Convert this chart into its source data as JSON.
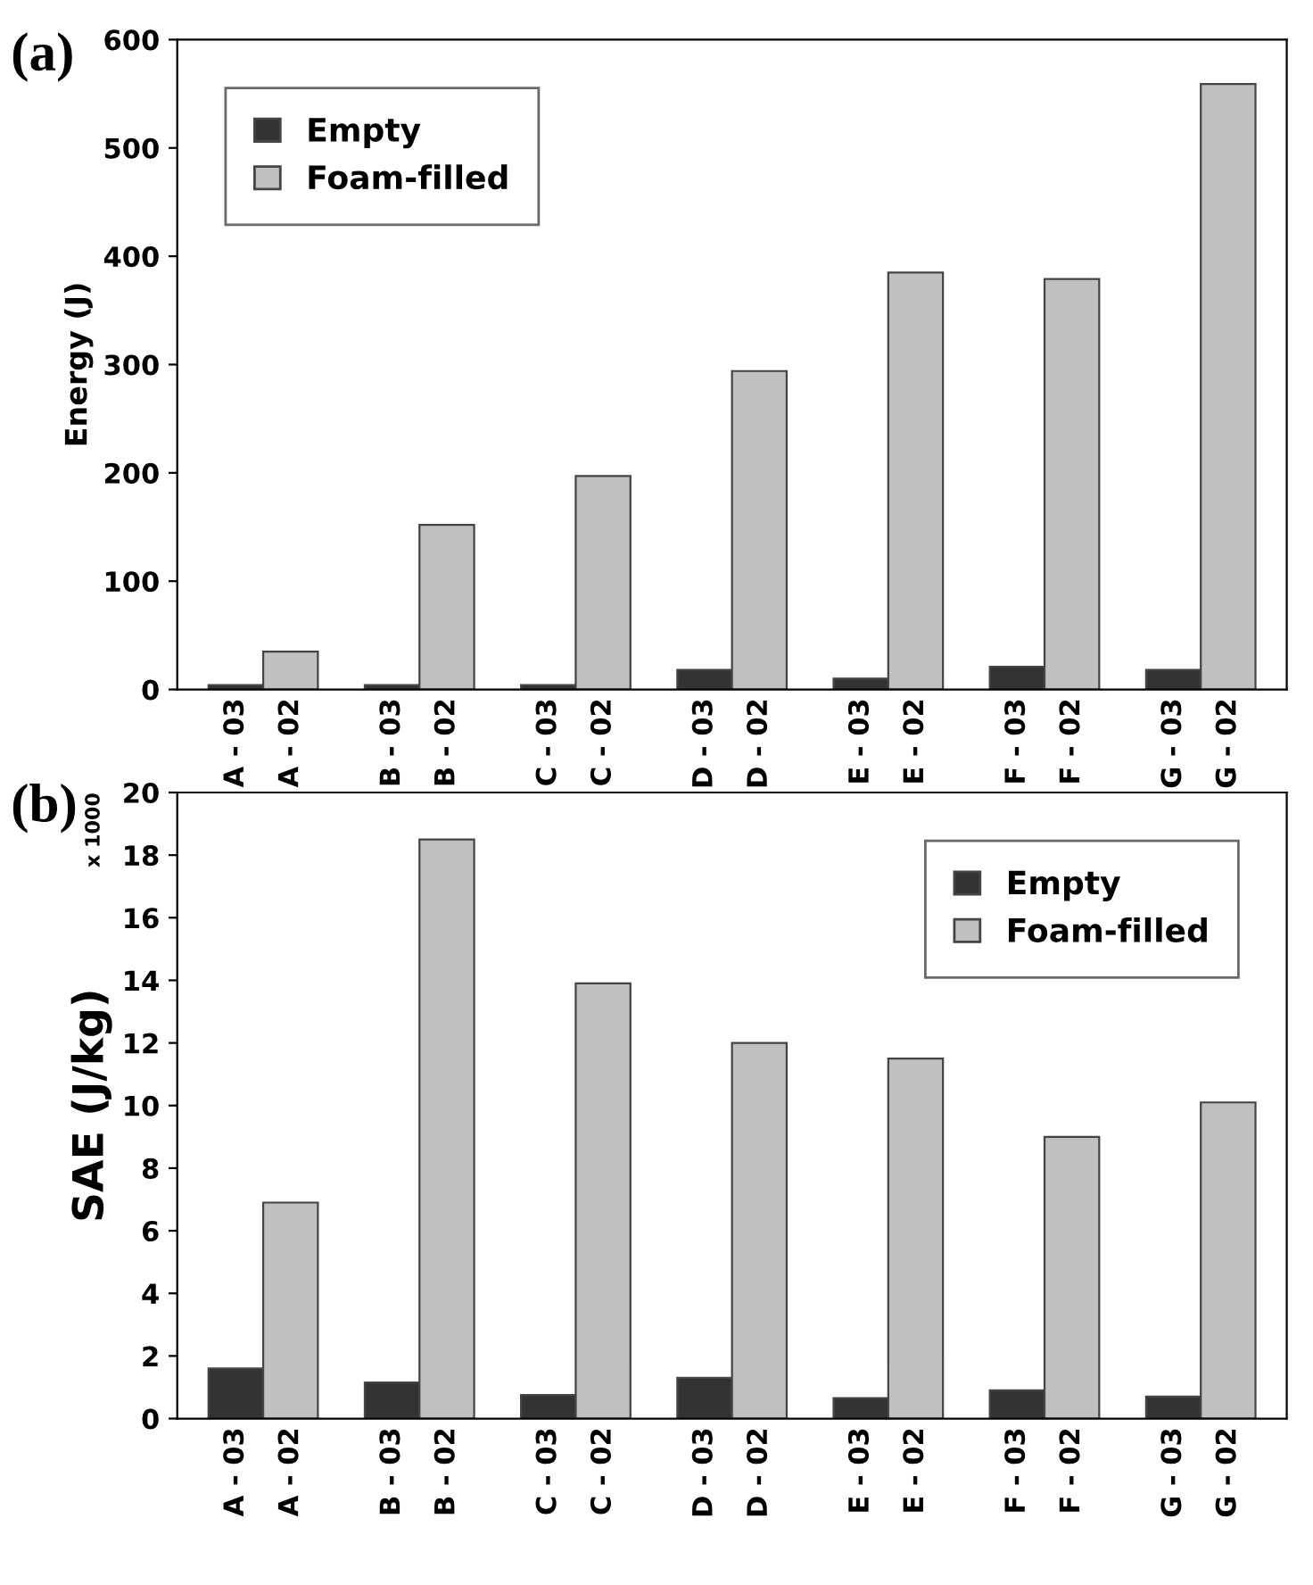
{
  "chart_data": [
    {
      "type": "bar",
      "title": "(a)",
      "ylabel": "Energy (J)",
      "categories": [
        "A - 03",
        "A - 02",
        "B - 03",
        "B - 02",
        "C - 03",
        "C - 02",
        "D - 03",
        "D - 02",
        "E - 03",
        "E - 02",
        "F - 03",
        "F - 02",
        "G - 03",
        "G - 02"
      ],
      "series": [
        {
          "name": "Empty",
          "color": "#333333",
          "values": [
            4,
            null,
            4,
            null,
            4,
            null,
            18,
            null,
            10,
            null,
            21,
            null,
            18,
            null
          ]
        },
        {
          "name": "Foam-filled",
          "color": "#c0c0c0",
          "values": [
            null,
            35,
            null,
            152,
            null,
            197,
            null,
            294,
            null,
            385,
            null,
            379,
            null,
            559
          ]
        }
      ],
      "ylim": [
        0,
        600
      ],
      "yticks": [
        0,
        100,
        200,
        300,
        400,
        500,
        600
      ],
      "grid": false,
      "legend": "top left"
    },
    {
      "type": "bar",
      "title": "(b)",
      "ylabel": "SAE (J/kg)",
      "annotations": [
        "x 1000"
      ],
      "categories": [
        "A - 03",
        "A - 02",
        "B - 03",
        "B - 02",
        "C - 03",
        "C - 02",
        "D - 03",
        "D - 02",
        "E - 03",
        "E - 02",
        "F - 03",
        "F - 02",
        "G - 03",
        "G - 02"
      ],
      "series": [
        {
          "name": "Empty",
          "color": "#333333",
          "values": [
            1.6,
            null,
            1.15,
            null,
            0.75,
            null,
            1.3,
            null,
            0.65,
            null,
            0.9,
            null,
            0.7,
            null
          ]
        },
        {
          "name": "Foam-filled",
          "color": "#c0c0c0",
          "values": [
            null,
            6.9,
            null,
            18.5,
            null,
            13.9,
            null,
            12.0,
            null,
            11.5,
            null,
            9.0,
            null,
            10.1
          ]
        }
      ],
      "ylim": [
        0,
        20
      ],
      "yticks": [
        0,
        2,
        4,
        6,
        8,
        10,
        12,
        14,
        16,
        18,
        20
      ],
      "grid": false,
      "legend": "top right"
    }
  ]
}
